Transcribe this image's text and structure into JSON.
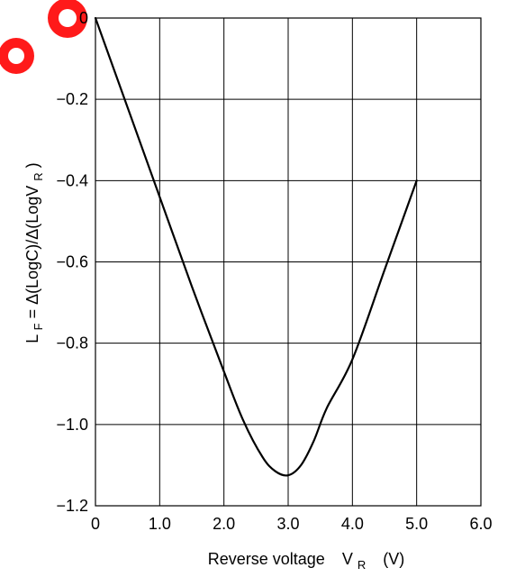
{
  "chart_data": {
    "type": "line",
    "title": "",
    "xlabel": {
      "main": "Reverse voltage",
      "symbol": "V",
      "subscript": "R",
      "unit": "(V)"
    },
    "ylabel": {
      "prefix": "L",
      "prefix_sub": "F",
      "formula": " = Δ(LogC)/Δ(LogV",
      "formula_sub": "R",
      "suffix": ")"
    },
    "xlim": [
      0,
      6
    ],
    "ylim": [
      -1.2,
      0
    ],
    "x_ticks": [
      "0",
      "1.0",
      "2.0",
      "3.0",
      "4.0",
      "5.0",
      "6.0"
    ],
    "y_ticks": [
      "0",
      "−0.2",
      "−0.4",
      "−0.6",
      "−0.8",
      "−1.0",
      "−1.2"
    ],
    "grid": true,
    "series": [
      {
        "x": [
          0,
          0.5,
          1.0,
          1.5,
          2.0,
          2.3,
          2.6,
          2.8,
          3.0,
          3.2,
          3.4,
          3.6,
          4.0,
          4.5,
          5.0
        ],
        "y": [
          0,
          -0.22,
          -0.44,
          -0.66,
          -0.87,
          -0.99,
          -1.08,
          -1.115,
          -1.125,
          -1.1,
          -1.04,
          -0.96,
          -0.84,
          -0.62,
          -0.4
        ]
      }
    ]
  },
  "colors": {
    "axes": "#000000",
    "watermark": "#ff1a1a"
  }
}
